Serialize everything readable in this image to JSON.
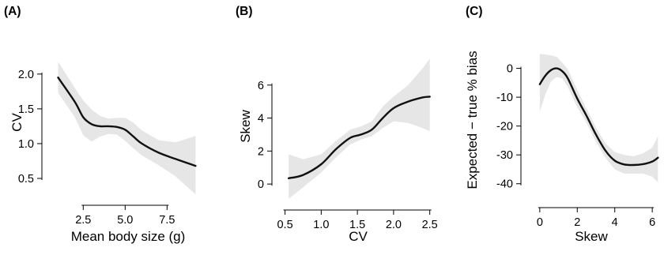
{
  "chart_data": [
    {
      "panel_label": "(A)",
      "type": "line",
      "xlabel": "Mean body size (g)",
      "ylabel": "CV",
      "xlim": [
        0.6,
        9.7
      ],
      "ylim": [
        0.25,
        2.35
      ],
      "xticks": [
        2.5,
        5.0,
        7.5
      ],
      "yticks": [
        0.5,
        1.0,
        1.5,
        2.0
      ],
      "tick_decimals": 1,
      "series": [
        {
          "x": [
            1.0,
            2.0,
            2.5,
            3.0,
            3.5,
            4.0,
            4.5,
            5.0,
            5.5,
            6.0,
            7.0,
            8.0,
            9.2
          ],
          "y": [
            1.95,
            1.6,
            1.38,
            1.28,
            1.25,
            1.25,
            1.24,
            1.2,
            1.1,
            1.0,
            0.87,
            0.78,
            0.68
          ]
        }
      ],
      "confidence_band": {
        "x": [
          1.0,
          2.0,
          2.5,
          3.0,
          3.5,
          4.0,
          4.5,
          5.0,
          5.5,
          6.0,
          7.0,
          8.0,
          9.2
        ],
        "lower": [
          1.73,
          1.38,
          1.12,
          1.03,
          1.1,
          1.14,
          1.13,
          1.04,
          0.93,
          0.83,
          0.69,
          0.53,
          0.27
        ],
        "upper": [
          2.18,
          1.8,
          1.62,
          1.49,
          1.4,
          1.36,
          1.37,
          1.37,
          1.3,
          1.19,
          1.05,
          1.02,
          1.11
        ]
      },
      "grid": false
    },
    {
      "panel_label": "(B)",
      "type": "line",
      "xlabel": "CV",
      "ylabel": "Skew",
      "xlim": [
        0.45,
        2.58
      ],
      "ylim": [
        -1.0,
        8.0
      ],
      "xticks": [
        0.5,
        1.0,
        1.5,
        2.0,
        2.5
      ],
      "yticks": [
        0,
        2,
        4,
        6
      ],
      "tick_decimals": 1,
      "ytick_decimals": 0,
      "series": [
        {
          "x": [
            0.55,
            0.75,
            1.0,
            1.2,
            1.4,
            1.55,
            1.7,
            1.85,
            2.0,
            2.2,
            2.4,
            2.5
          ],
          "y": [
            0.35,
            0.55,
            1.2,
            2.1,
            2.8,
            3.0,
            3.3,
            4.0,
            4.6,
            5.0,
            5.25,
            5.3
          ]
        }
      ],
      "confidence_band": {
        "x": [
          0.55,
          0.75,
          1.0,
          1.2,
          1.4,
          1.55,
          1.7,
          1.85,
          2.0,
          2.2,
          2.4,
          2.5
        ],
        "lower": [
          -0.9,
          -0.2,
          0.7,
          1.6,
          2.4,
          2.7,
          2.9,
          3.4,
          3.8,
          3.7,
          3.4,
          3.2
        ],
        "upper": [
          1.8,
          1.5,
          1.8,
          2.6,
          3.3,
          3.5,
          3.8,
          4.7,
          5.3,
          6.0,
          7.0,
          7.6
        ]
      },
      "grid": false
    },
    {
      "panel_label": "(C)",
      "type": "line",
      "xlabel": "Skew",
      "ylabel": "Expected − true % bias",
      "xlim": [
        -0.5,
        6.5
      ],
      "ylim": [
        -45,
        7
      ],
      "xticks": [
        0,
        2,
        4,
        6
      ],
      "yticks": [
        0,
        -10,
        -20,
        -30,
        -40
      ],
      "tick_decimals": 0,
      "series": [
        {
          "x": [
            0.0,
            0.3,
            0.6,
            0.9,
            1.2,
            1.5,
            2.0,
            2.5,
            3.0,
            3.5,
            4.0,
            4.5,
            5.0,
            5.5,
            6.0,
            6.3
          ],
          "y": [
            -5.5,
            -2.5,
            -0.6,
            0.0,
            -1.0,
            -3.5,
            -10.5,
            -16.5,
            -23.0,
            -28.5,
            -32.0,
            -33.3,
            -33.5,
            -33.2,
            -32.3,
            -31.0
          ]
        }
      ],
      "confidence_band": {
        "x": [
          0.0,
          0.3,
          0.6,
          0.9,
          1.2,
          1.5,
          2.0,
          2.5,
          3.0,
          3.5,
          4.0,
          4.5,
          5.0,
          5.5,
          6.0,
          6.3
        ],
        "lower": [
          -15.0,
          -9.0,
          -4.5,
          -3.0,
          -3.5,
          -6.5,
          -13.5,
          -19.0,
          -25.5,
          -31.0,
          -35.0,
          -36.5,
          -36.5,
          -36.5,
          -37.5,
          -39.5
        ],
        "upper": [
          5.0,
          4.8,
          4.5,
          4.0,
          2.0,
          -0.3,
          -7.5,
          -14.0,
          -20.5,
          -26.0,
          -29.0,
          -30.0,
          -30.5,
          -29.5,
          -27.5,
          -23.5
        ]
      },
      "grid": false
    }
  ]
}
